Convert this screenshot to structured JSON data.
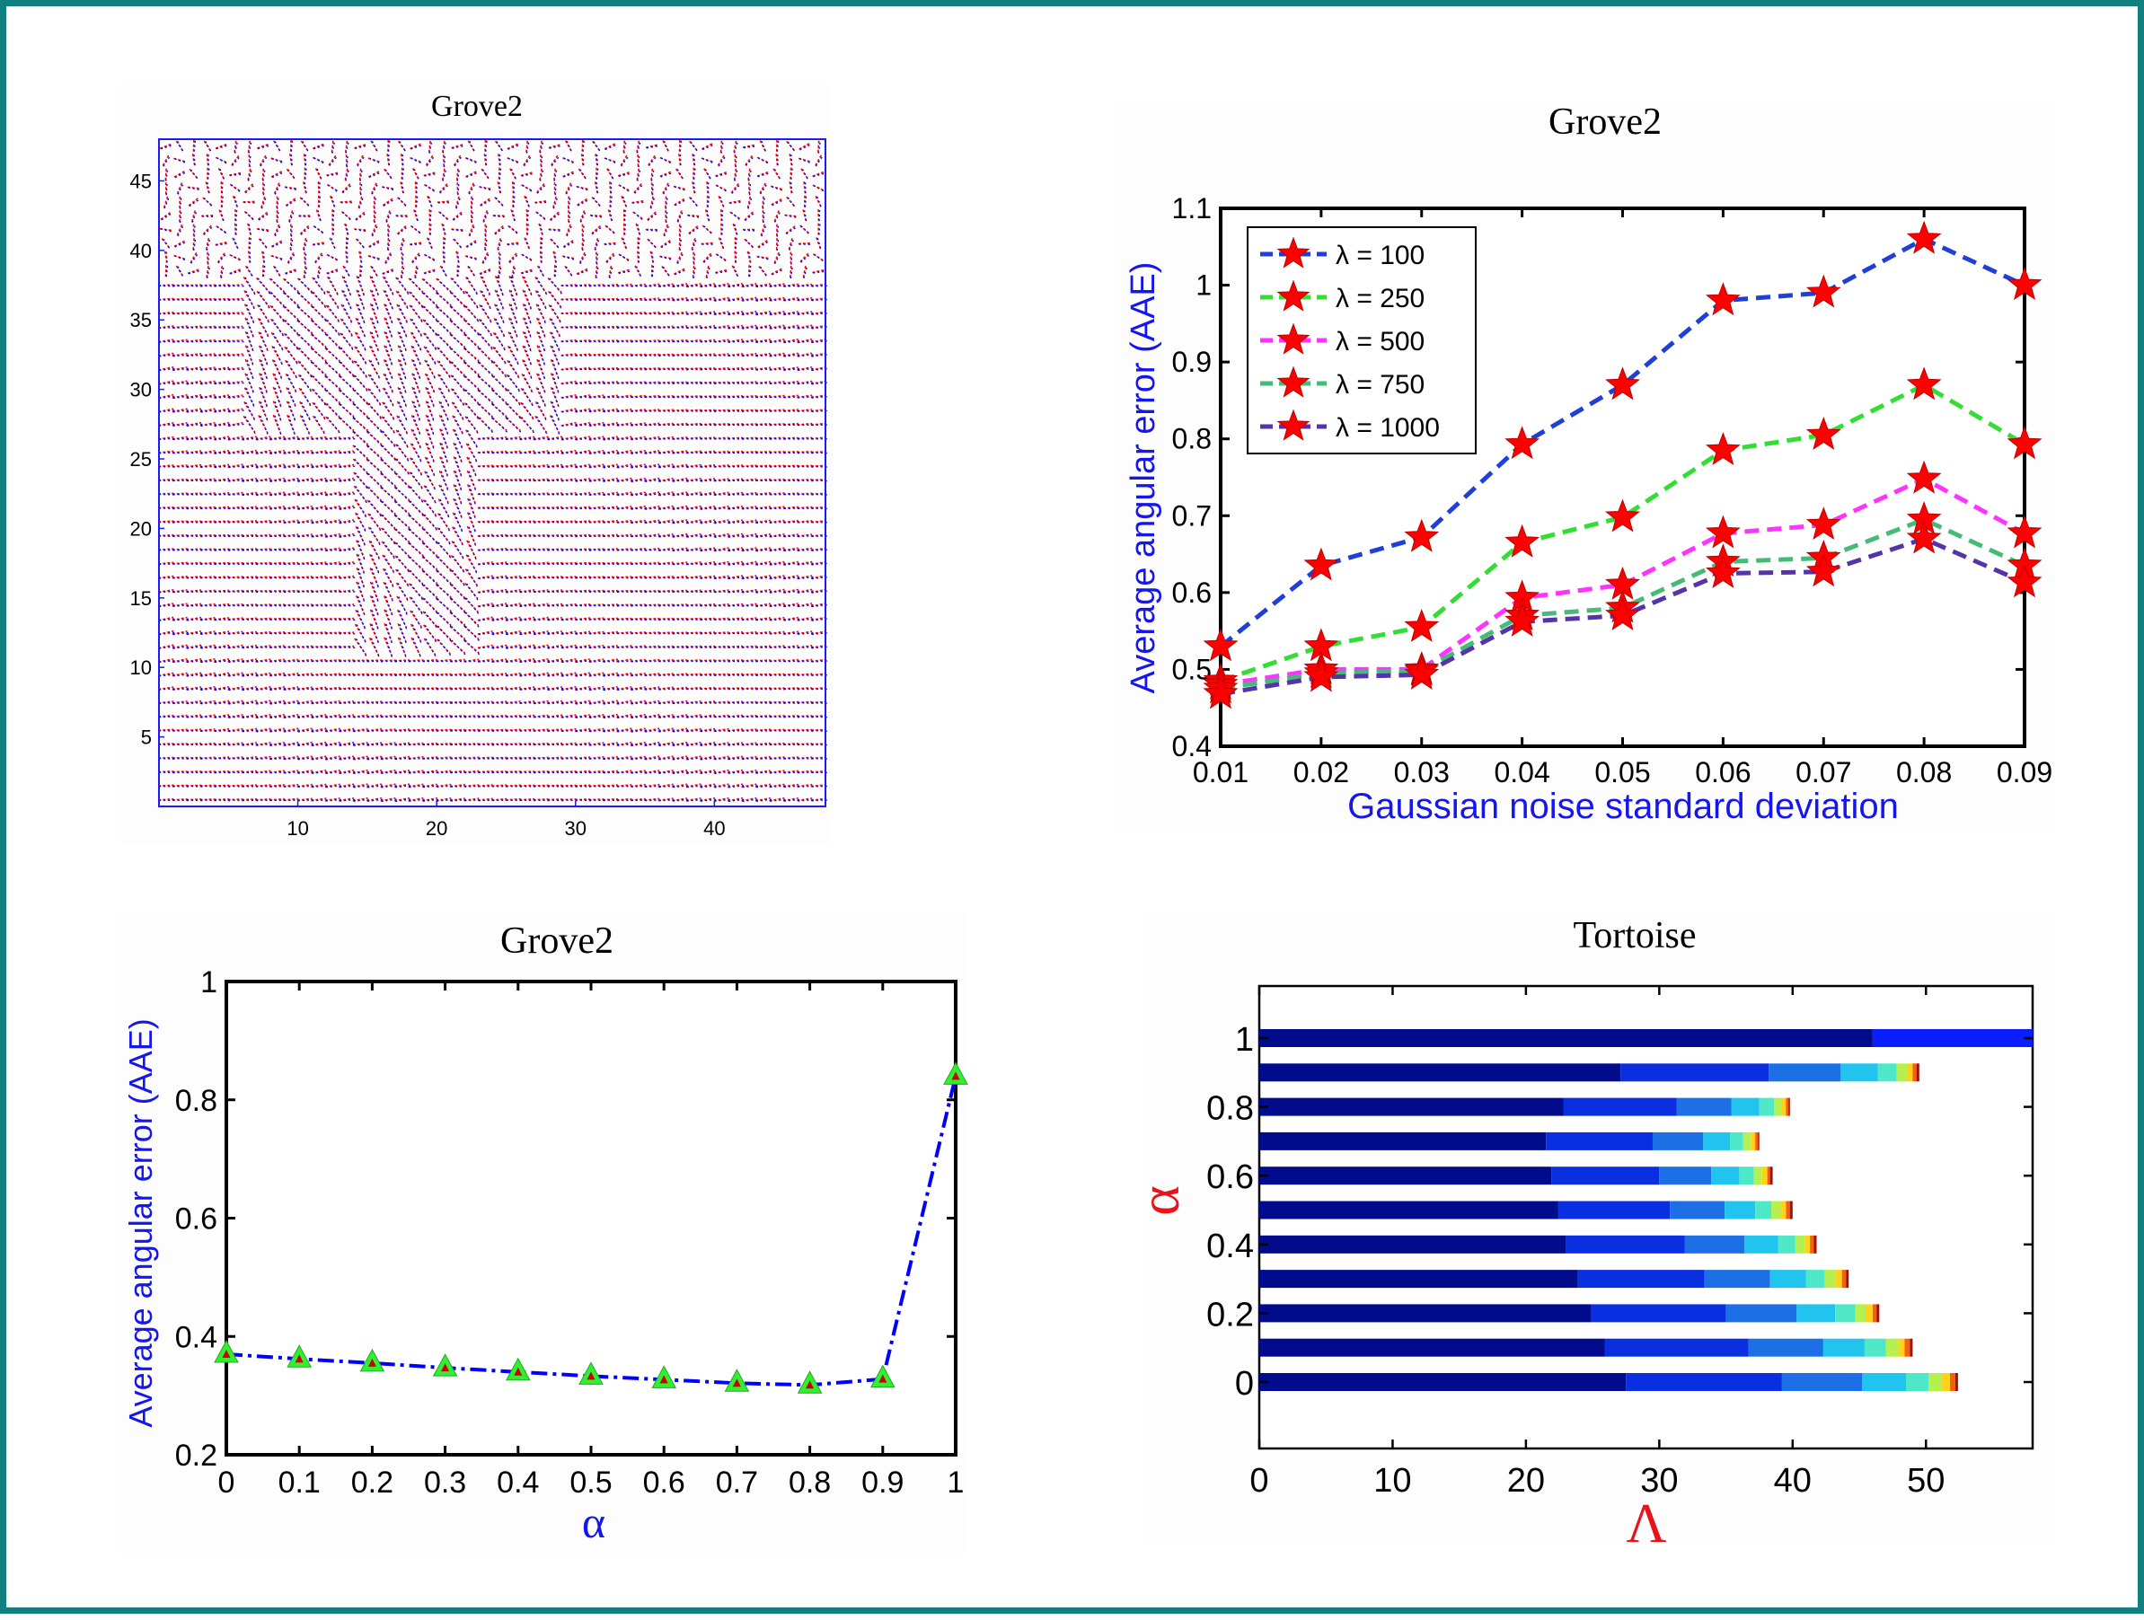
{
  "chart_data": [
    {
      "type": "quiver",
      "title": "Grove2",
      "xlim": [
        0,
        48
      ],
      "ylim": [
        0,
        48
      ],
      "xticks": [
        10,
        20,
        30,
        40
      ],
      "yticks": [
        5,
        10,
        15,
        20,
        25,
        30,
        35,
        40,
        45
      ],
      "grid_size": 48,
      "colors": {
        "primary": "#ff0000",
        "secondary": "#0000ff"
      }
    },
    {
      "type": "line",
      "title": "Grove2",
      "xlabel": "Gaussian noise standard deviation",
      "ylabel": "Average angular error (AAE)",
      "x": [
        0.01,
        0.02,
        0.03,
        0.04,
        0.05,
        0.06,
        0.07,
        0.08,
        0.09
      ],
      "xticks": [
        "0.01",
        "0.02",
        "0.03",
        "0.04",
        "0.05",
        "0.06",
        "0.07",
        "0.08",
        "0.09"
      ],
      "yticks": [
        "0.4",
        "0.5",
        "0.6",
        "0.7",
        "0.8",
        "0.9",
        "1",
        "1.1"
      ],
      "ylim": [
        0.4,
        1.1
      ],
      "legend_position": "top-left",
      "marker_color": "#ff0000",
      "series": [
        {
          "name": "λ = 100",
          "color": "#1f3fd6",
          "values": [
            0.53,
            0.635,
            0.672,
            0.793,
            0.87,
            0.98,
            0.99,
            1.06,
            1.0
          ]
        },
        {
          "name": "λ = 250",
          "color": "#33dd33",
          "values": [
            0.485,
            0.53,
            0.555,
            0.665,
            0.698,
            0.785,
            0.805,
            0.87,
            0.793
          ]
        },
        {
          "name": "λ = 500",
          "color": "#ff33ff",
          "values": [
            0.48,
            0.5,
            0.5,
            0.593,
            0.61,
            0.677,
            0.688,
            0.748,
            0.677
          ]
        },
        {
          "name": "λ = 750",
          "color": "#44bb77",
          "values": [
            0.475,
            0.495,
            0.498,
            0.57,
            0.58,
            0.64,
            0.645,
            0.695,
            0.635
          ]
        },
        {
          "name": "λ = 1000",
          "color": "#5533aa",
          "values": [
            0.468,
            0.49,
            0.493,
            0.562,
            0.57,
            0.625,
            0.627,
            0.67,
            0.613
          ]
        }
      ]
    },
    {
      "type": "line",
      "title": "Grove2",
      "xlabel": "α",
      "ylabel": "Average angular error (AAE)",
      "x": [
        0,
        0.1,
        0.2,
        0.3,
        0.4,
        0.5,
        0.6,
        0.7,
        0.8,
        0.9,
        1
      ],
      "xticks": [
        "0",
        "0.1",
        "0.2",
        "0.3",
        "0.4",
        "0.5",
        "0.6",
        "0.7",
        "0.8",
        "0.9",
        "1"
      ],
      "yticks": [
        "0.2",
        "0.4",
        "0.6",
        "0.8",
        "1"
      ],
      "ylim": [
        0.2,
        1.0
      ],
      "series": [
        {
          "values": [
            0.37,
            0.362,
            0.355,
            0.347,
            0.34,
            0.333,
            0.327,
            0.321,
            0.318,
            0.328,
            0.84
          ],
          "color": "#0000ff",
          "marker_fill": "#33ee33",
          "marker_center": "#cc0000"
        }
      ]
    },
    {
      "type": "bar",
      "orientation": "horizontal",
      "stacked": true,
      "title": "Tortoise",
      "xlabel": "Λ",
      "ylabel": "α",
      "xlim": [
        0,
        58
      ],
      "xticks": [
        "0",
        "10",
        "20",
        "30",
        "40",
        "50"
      ],
      "yticks": [
        "0",
        "0.2",
        "0.4",
        "0.6",
        "0.8",
        "1"
      ],
      "segment_colors": [
        "#000c8c",
        "#0a2fe0",
        "#1c6fe4",
        "#20c4ee",
        "#4ee8c8",
        "#b4f050",
        "#ffd21a",
        "#f26010",
        "#a01010"
      ],
      "categories": [
        0,
        0.1,
        0.2,
        0.3,
        0.4,
        0.5,
        0.6,
        0.7,
        0.8,
        0.9,
        1
      ],
      "rows": [
        [
          27.5,
          11.7,
          6.0,
          3.3,
          1.7,
          1.0,
          0.6,
          0.4,
          0.2
        ],
        [
          25.9,
          10.8,
          5.6,
          3.1,
          1.6,
          0.9,
          0.5,
          0.4,
          0.2
        ],
        [
          24.9,
          10.1,
          5.3,
          2.9,
          1.5,
          0.8,
          0.5,
          0.3,
          0.2
        ],
        [
          23.9,
          9.5,
          4.9,
          2.7,
          1.4,
          0.8,
          0.5,
          0.3,
          0.2
        ],
        [
          23.0,
          8.9,
          4.5,
          2.5,
          1.3,
          0.7,
          0.4,
          0.3,
          0.2
        ],
        [
          22.4,
          8.4,
          4.1,
          2.3,
          1.2,
          0.7,
          0.4,
          0.3,
          0.2
        ],
        [
          21.9,
          8.1,
          3.9,
          2.1,
          1.1,
          0.6,
          0.4,
          0.2,
          0.2
        ],
        [
          21.5,
          8.0,
          3.8,
          2.0,
          1.0,
          0.6,
          0.3,
          0.2,
          0.1
        ],
        [
          22.8,
          8.5,
          4.1,
          2.1,
          1.1,
          0.6,
          0.3,
          0.2,
          0.1
        ],
        [
          27.1,
          11.1,
          5.4,
          2.8,
          1.4,
          0.8,
          0.4,
          0.3,
          0.2
        ],
        [
          46.0,
          12.0
        ]
      ]
    }
  ]
}
